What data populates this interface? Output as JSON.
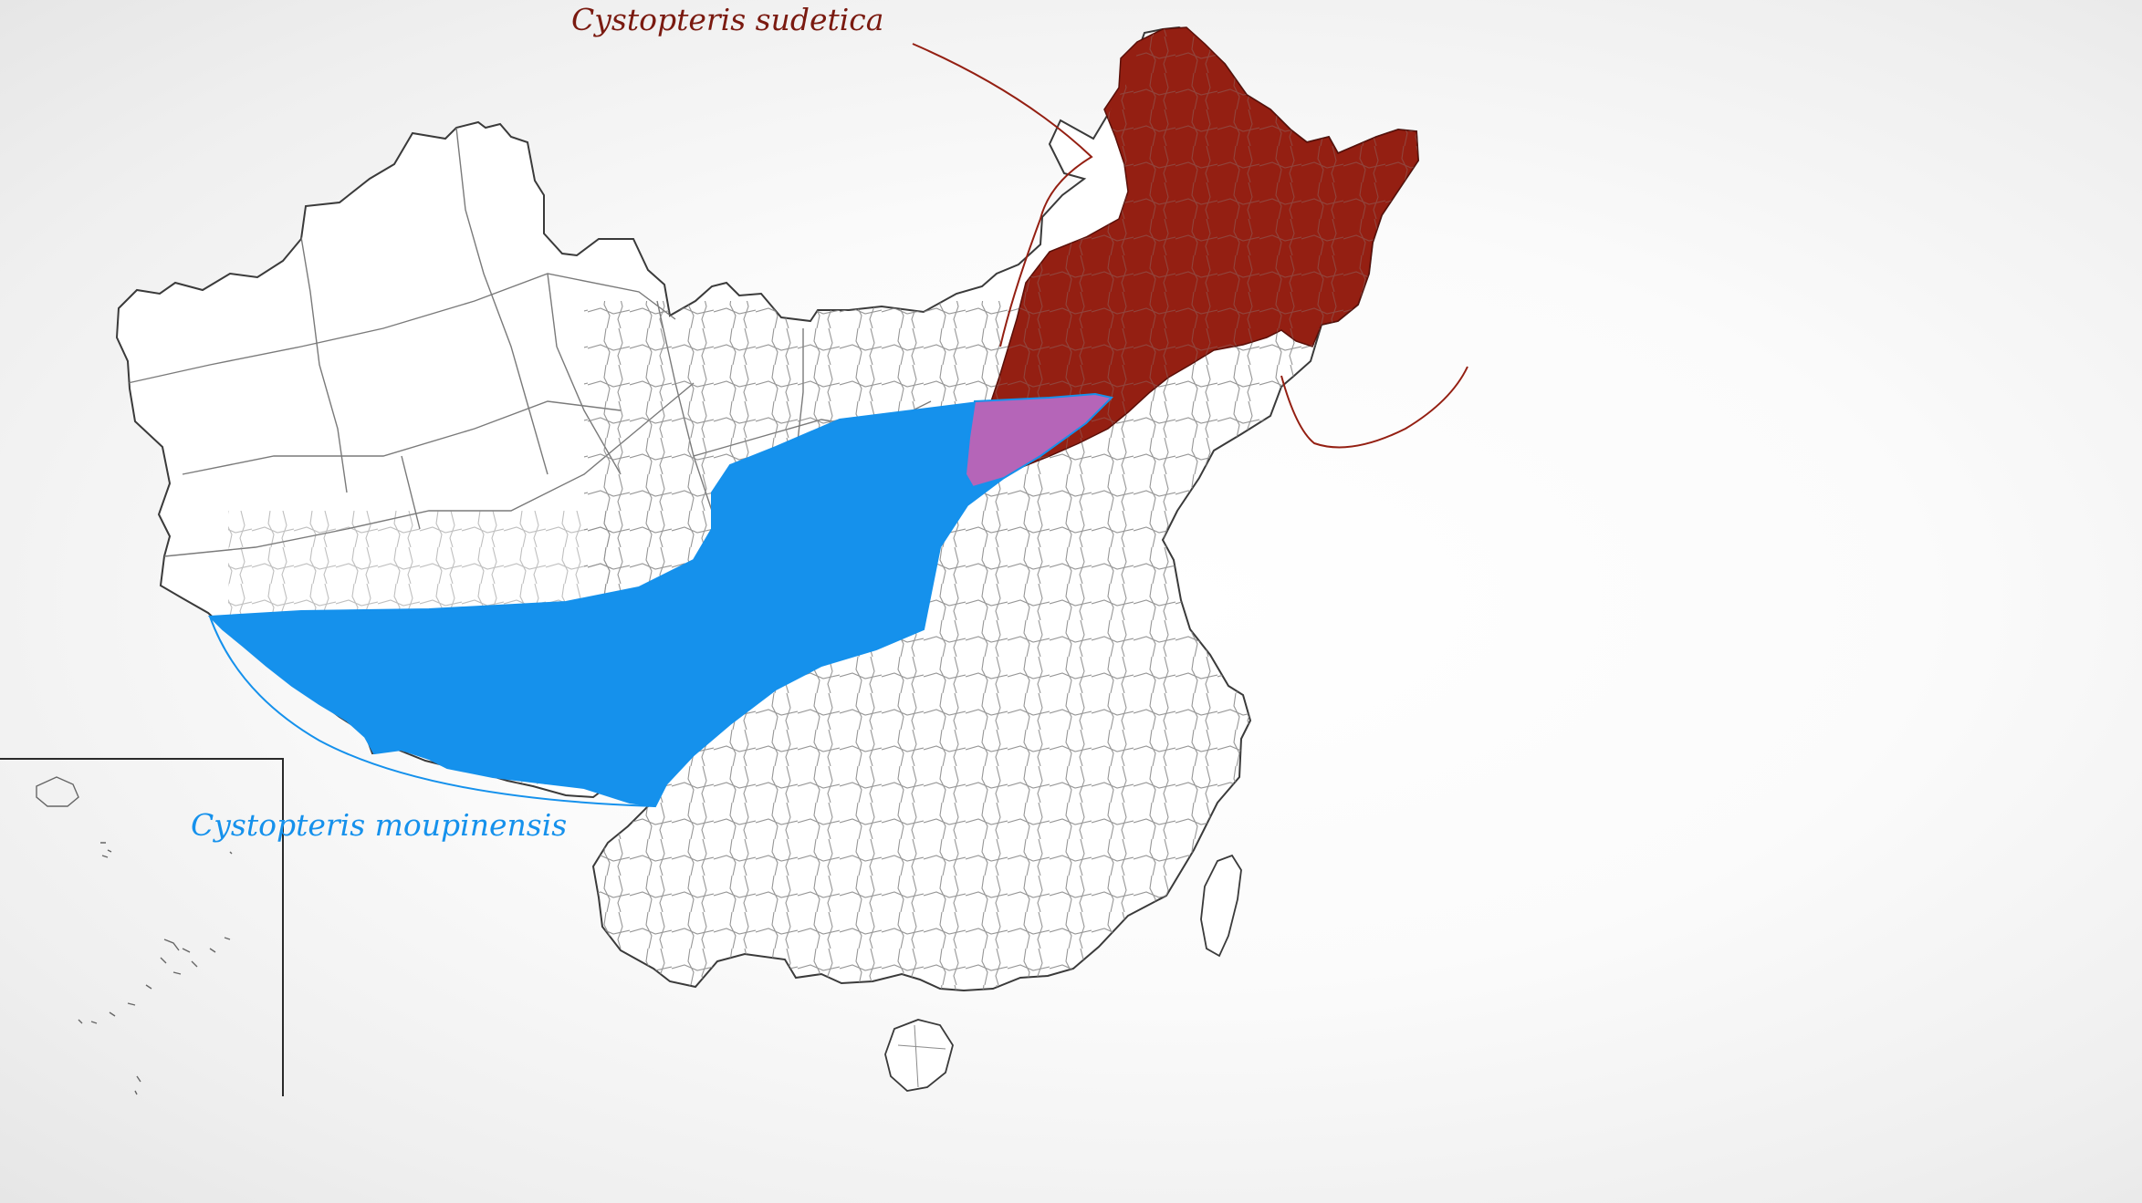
{
  "map": {
    "country": "China",
    "inset": "South China Sea islands"
  },
  "species": [
    {
      "id": "sudetica",
      "name": "Cystopteris sudetica",
      "color": "#941f12",
      "region": "Northeast China"
    },
    {
      "id": "moupinensis",
      "name": "Cystopteris moupinensis",
      "color": "#1591ec",
      "region": "Himalaya to North China"
    }
  ],
  "overlap": {
    "color": "#b565b8"
  },
  "colors": {
    "background": "#f4f4f4",
    "boundary": "#444444"
  }
}
